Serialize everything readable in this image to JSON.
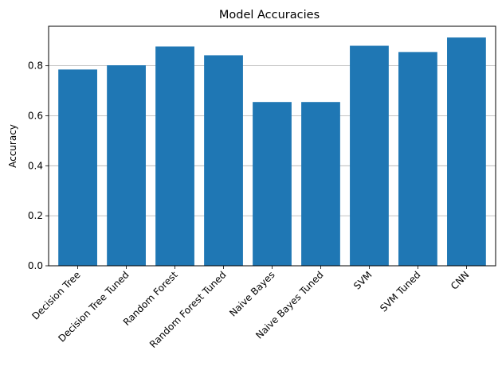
{
  "chart_data": {
    "type": "bar",
    "title": "Model Accuracies",
    "xlabel": "",
    "ylabel": "Accuracy",
    "categories": [
      "Decision Tree",
      "Decision Tree Tuned",
      "Random Forest",
      "Random Forest Tuned",
      "Naive Bayes",
      "Naive Bayes Tuned",
      "SVM",
      "SVM Tuned",
      "CNN"
    ],
    "values": [
      0.785,
      0.802,
      0.877,
      0.842,
      0.655,
      0.655,
      0.88,
      0.855,
      0.913
    ],
    "ylim": [
      0,
      0.958
    ],
    "yticks": [
      0.0,
      0.2,
      0.4,
      0.6,
      0.8
    ],
    "ytick_labels": [
      "0.0",
      "0.2",
      "0.4",
      "0.6",
      "0.8"
    ],
    "grid": "y-major",
    "bar_color": "#1f77b4",
    "grid_color": "#b0b0b0",
    "legend": "none"
  }
}
